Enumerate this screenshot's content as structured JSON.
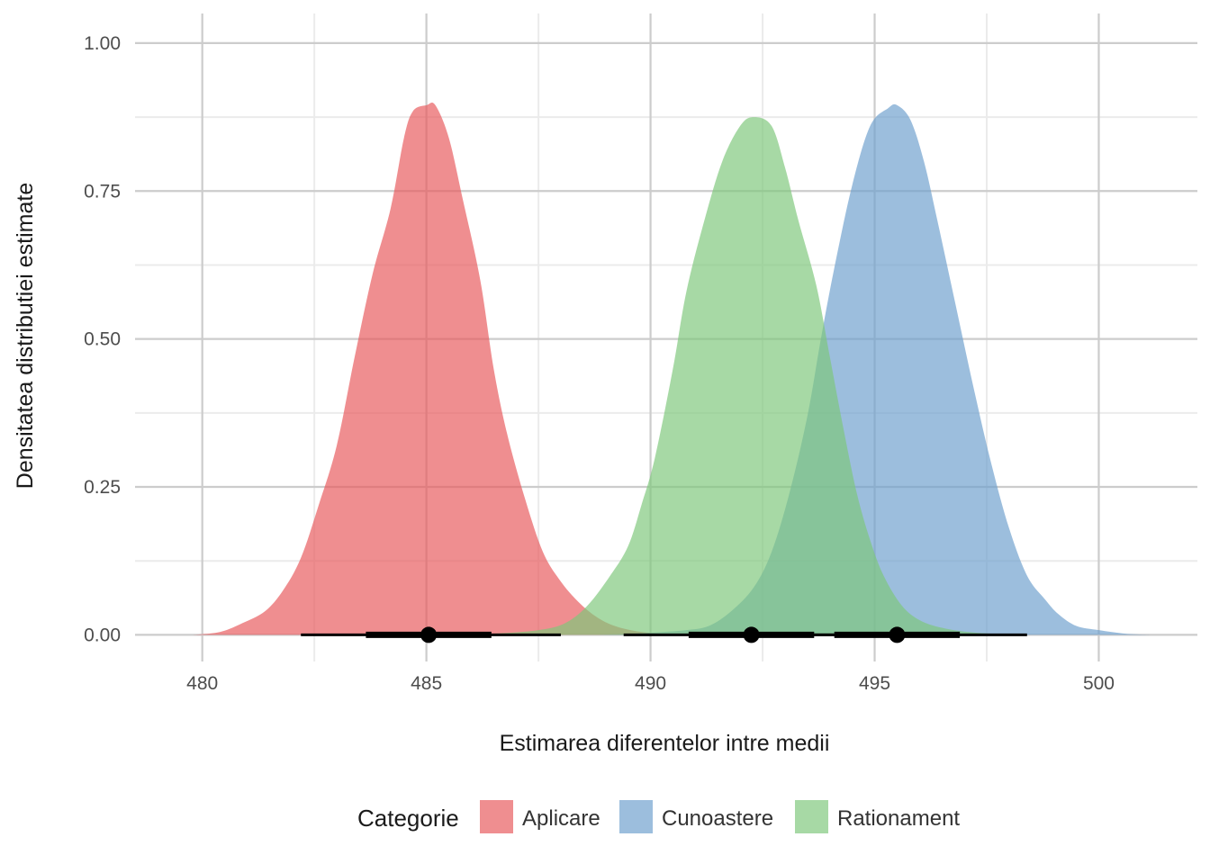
{
  "chart_data": {
    "type": "area",
    "subtype": "density with point-interval",
    "title": "",
    "xlabel": "Estimarea diferentelor intre medii",
    "ylabel": "Densitatea distributiei estimate",
    "xlim": [
      478.5,
      502.2
    ],
    "ylim": [
      -0.045,
      1.05
    ],
    "x_ticks": [
      "480",
      "485",
      "490",
      "495",
      "500"
    ],
    "y_ticks": [
      "0.00",
      "0.25",
      "0.50",
      "0.75",
      "1.00"
    ],
    "grid": true,
    "legend": {
      "title": "Categorie",
      "position": "bottom",
      "entries": [
        "Aplicare",
        "Cunoastere",
        "Rationament"
      ]
    },
    "series": [
      {
        "name": "Aplicare",
        "color": "#e8585b",
        "alpha": 0.68,
        "density": [
          [
            479.8,
            0
          ],
          [
            480.4,
            0.005
          ],
          [
            480.9,
            0.02
          ],
          [
            481.4,
            0.04
          ],
          [
            481.8,
            0.075
          ],
          [
            482.2,
            0.13
          ],
          [
            482.6,
            0.22
          ],
          [
            483.0,
            0.32
          ],
          [
            483.4,
            0.47
          ],
          [
            483.8,
            0.61
          ],
          [
            484.2,
            0.72
          ],
          [
            484.5,
            0.84
          ],
          [
            484.7,
            0.885
          ],
          [
            485.0,
            0.895
          ],
          [
            485.2,
            0.895
          ],
          [
            485.5,
            0.84
          ],
          [
            485.8,
            0.74
          ],
          [
            486.2,
            0.6
          ],
          [
            486.5,
            0.45
          ],
          [
            486.8,
            0.34
          ],
          [
            487.2,
            0.23
          ],
          [
            487.6,
            0.14
          ],
          [
            488.0,
            0.09
          ],
          [
            488.4,
            0.055
          ],
          [
            488.8,
            0.03
          ],
          [
            489.2,
            0.015
          ],
          [
            489.7,
            0.006
          ],
          [
            490.3,
            0.002
          ],
          [
            491.0,
            0
          ]
        ],
        "point": 485.05,
        "interval_inner": [
          483.65,
          486.45
        ],
        "interval_outer": [
          482.2,
          488.0
        ]
      },
      {
        "name": "Cunoastere",
        "color": "#6d9fcd",
        "alpha": 0.68,
        "density": [
          [
            488.8,
            0
          ],
          [
            489.6,
            0.002
          ],
          [
            490.3,
            0.005
          ],
          [
            490.8,
            0.008
          ],
          [
            491.3,
            0.015
          ],
          [
            491.8,
            0.04
          ],
          [
            492.3,
            0.08
          ],
          [
            492.7,
            0.14
          ],
          [
            493.1,
            0.24
          ],
          [
            493.5,
            0.37
          ],
          [
            493.8,
            0.5
          ],
          [
            494.1,
            0.62
          ],
          [
            494.5,
            0.76
          ],
          [
            494.9,
            0.86
          ],
          [
            495.3,
            0.89
          ],
          [
            495.5,
            0.895
          ],
          [
            495.8,
            0.87
          ],
          [
            496.1,
            0.8
          ],
          [
            496.4,
            0.7
          ],
          [
            496.8,
            0.56
          ],
          [
            497.2,
            0.42
          ],
          [
            497.6,
            0.29
          ],
          [
            498.0,
            0.18
          ],
          [
            498.4,
            0.1
          ],
          [
            498.8,
            0.06
          ],
          [
            499.1,
            0.035
          ],
          [
            499.5,
            0.015
          ],
          [
            500.0,
            0.008
          ],
          [
            500.6,
            0.002
          ],
          [
            501.2,
            0
          ]
        ],
        "point": 495.5,
        "interval_inner": [
          494.1,
          496.9
        ],
        "interval_outer": [
          492.6,
          498.4
        ]
      },
      {
        "name": "Rationament",
        "color": "#7ec77a",
        "alpha": 0.68,
        "density": [
          [
            485.5,
            0
          ],
          [
            486.5,
            0.002
          ],
          [
            487.5,
            0.008
          ],
          [
            488.1,
            0.02
          ],
          [
            488.6,
            0.05
          ],
          [
            489.1,
            0.1
          ],
          [
            489.5,
            0.15
          ],
          [
            489.8,
            0.22
          ],
          [
            490.1,
            0.3
          ],
          [
            490.5,
            0.45
          ],
          [
            490.8,
            0.58
          ],
          [
            491.2,
            0.7
          ],
          [
            491.6,
            0.8
          ],
          [
            492.0,
            0.86
          ],
          [
            492.3,
            0.875
          ],
          [
            492.7,
            0.86
          ],
          [
            493.0,
            0.79
          ],
          [
            493.3,
            0.7
          ],
          [
            493.7,
            0.59
          ],
          [
            494.0,
            0.47
          ],
          [
            494.3,
            0.35
          ],
          [
            494.6,
            0.24
          ],
          [
            494.9,
            0.16
          ],
          [
            495.2,
            0.1
          ],
          [
            495.6,
            0.05
          ],
          [
            496.0,
            0.025
          ],
          [
            496.5,
            0.012
          ],
          [
            497.2,
            0.004
          ],
          [
            498.2,
            0
          ]
        ],
        "point": 492.25,
        "interval_inner": [
          490.85,
          493.65
        ],
        "interval_outer": [
          489.4,
          495.1
        ]
      }
    ]
  }
}
